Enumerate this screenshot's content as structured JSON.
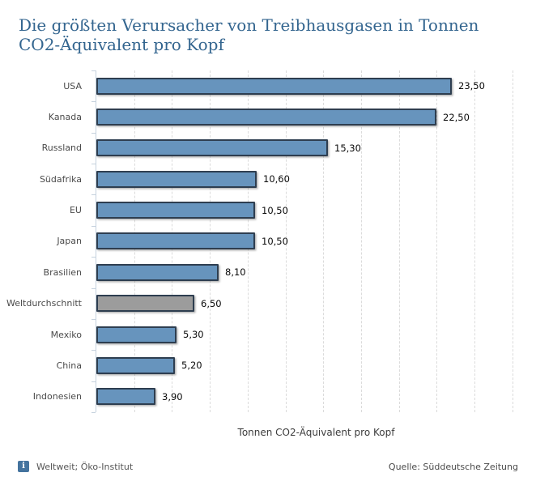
{
  "title": "Die größten Verursacher von Treibhausgasen in Tonnen CO2-Äquivalent pro Kopf",
  "chart_data": {
    "type": "bar",
    "orientation": "horizontal",
    "title": "Die größten Verursacher von Treibhausgasen in Tonnen CO2-Äquivalent pro Kopf",
    "xlabel": "Tonnen CO2-Äquivalent pro Kopf",
    "categories": [
      "USA",
      "Kanada",
      "Russland",
      "Südafrika",
      "EU",
      "Japan",
      "Brasilien",
      "Weltdurchschnitt",
      "Mexiko",
      "China",
      "Indonesien"
    ],
    "values": [
      23.5,
      22.5,
      15.3,
      10.6,
      10.5,
      10.5,
      8.1,
      6.5,
      5.3,
      5.2,
      3.9
    ],
    "value_labels": [
      "23,50",
      "22,50",
      "15,30",
      "10,60",
      "10,50",
      "10,50",
      "8,10",
      "6,50",
      "5,30",
      "5,20",
      "3,90"
    ],
    "highlight_category": "Weltdurchschnitt",
    "xlim": [
      0,
      29
    ],
    "x_tick_interval": 2.5,
    "grid": true,
    "legend": "none",
    "colors": {
      "bar_fill": "#6794bd",
      "bar_border": "#2e3e50",
      "highlight_fill": "#9c9c9c",
      "axis_line": "#c6d2de",
      "gridline": "#dbdbdb",
      "title_text": "#33658f"
    }
  },
  "footer": {
    "info_icon": "i",
    "note": "Weltweit; Öko-Institut",
    "source": "Quelle: Süddeutsche Zeitung"
  }
}
